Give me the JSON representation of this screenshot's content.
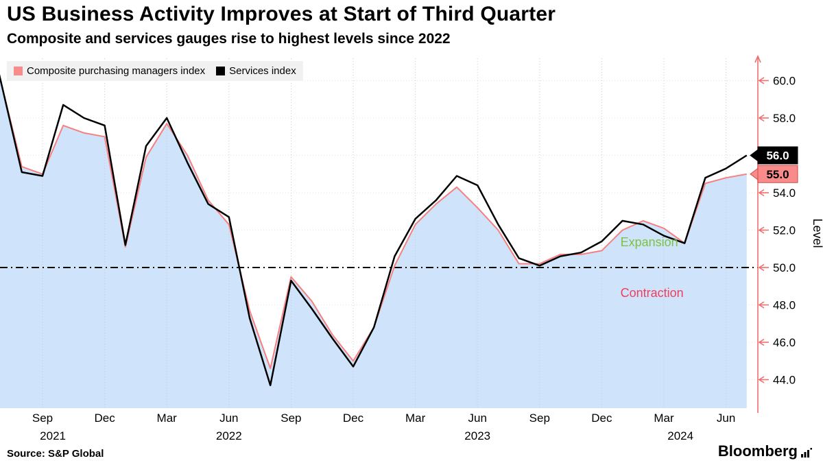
{
  "header": {
    "title": "US Business Activity Improves at Start of Third Quarter",
    "subtitle": "Composite and services gauges rise to highest levels since 2022"
  },
  "legend": {
    "items": [
      {
        "label": "Composite purchasing managers index",
        "color": "#f98b8b"
      },
      {
        "label": "Services index",
        "color": "#000000"
      }
    ]
  },
  "footer": {
    "source": "Source: S&P Global",
    "brand": "Bloomberg"
  },
  "chart_data": {
    "type": "line",
    "title": "US Business Activity Improves at Start of Third Quarter",
    "subtitle": "Composite and services gauges rise to highest levels since 2022",
    "x_start_month": "2021-06",
    "x_frequency": "monthly",
    "series": [
      {
        "name": "Composite purchasing managers index",
        "color": "#f77f7f",
        "area_fill": "#cfe4fa",
        "values": [
          63.7,
          59.9,
          55.4,
          55.0,
          57.6,
          57.2,
          57.0,
          51.1,
          55.9,
          57.7,
          56.0,
          53.6,
          52.3,
          47.7,
          44.6,
          49.5,
          48.2,
          46.4,
          45.0,
          46.8,
          50.1,
          52.3,
          53.4,
          54.3,
          53.2,
          52.0,
          50.2,
          50.2,
          50.7,
          50.7,
          50.9,
          52.0,
          52.5,
          52.1,
          51.3,
          54.5,
          54.8,
          55.0
        ]
      },
      {
        "name": "Services index",
        "color": "#000000",
        "values": [
          64.6,
          59.9,
          55.1,
          54.9,
          58.7,
          58.0,
          57.6,
          51.2,
          56.5,
          58.0,
          55.6,
          53.4,
          52.7,
          47.3,
          43.7,
          49.3,
          47.8,
          46.2,
          44.7,
          46.8,
          50.6,
          52.6,
          53.6,
          54.9,
          54.4,
          52.3,
          50.5,
          50.1,
          50.6,
          50.8,
          51.4,
          52.5,
          52.3,
          51.7,
          51.3,
          54.8,
          55.3,
          56.0
        ]
      }
    ],
    "x_ticks": [
      {
        "label": "Sep",
        "month": 3
      },
      {
        "label": "Dec",
        "month": 6
      },
      {
        "label": "Mar",
        "month": 9
      },
      {
        "label": "Jun",
        "month": 12
      },
      {
        "label": "Sep",
        "month": 15
      },
      {
        "label": "Dec",
        "month": 18
      },
      {
        "label": "Mar",
        "month": 21
      },
      {
        "label": "Jun",
        "month": 24
      },
      {
        "label": "Sep",
        "month": 27
      },
      {
        "label": "Dec",
        "month": 30
      },
      {
        "label": "Mar",
        "month": 33
      },
      {
        "label": "Jun",
        "month": 36
      }
    ],
    "year_labels": [
      {
        "label": "2021",
        "month": 3.5
      },
      {
        "label": "2022",
        "month": 12
      },
      {
        "label": "2023",
        "month": 24
      },
      {
        "label": "2024",
        "month": 33.8
      }
    ],
    "y_ticks": [
      44,
      46,
      48,
      50,
      52,
      54,
      56,
      58,
      60
    ],
    "ylim": [
      42.5,
      61.2
    ],
    "ylabel": "Level",
    "baseline": {
      "value": 50,
      "style": "dash-dot",
      "color": "#000000"
    },
    "annotations": [
      {
        "text": "Expansion",
        "color": "#7cc242",
        "x_month": 30.9,
        "value": 51.35
      },
      {
        "text": "Contraction",
        "color": "#ef3e5b",
        "x_month": 30.9,
        "value": 48.65
      }
    ],
    "end_labels": [
      {
        "text": "56.0",
        "value": 56.0,
        "bg": "#000000",
        "fg": "#ffffff",
        "border": "#000000"
      },
      {
        "text": "55.0",
        "value": 55.0,
        "bg": "#f98b8b",
        "fg": "#000000",
        "border": "#cf4a4a"
      }
    ],
    "axis": {
      "color": "#f26d6d"
    },
    "grid": "dotted",
    "legend_position": "top-left"
  }
}
